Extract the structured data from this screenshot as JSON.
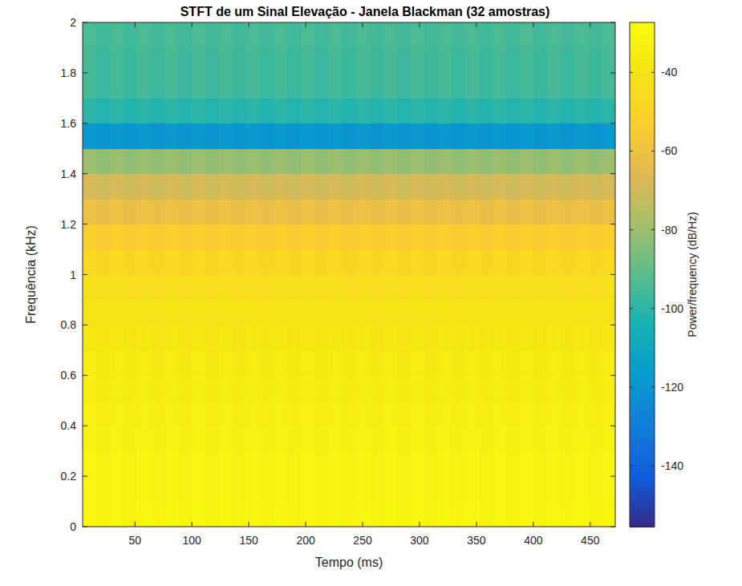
{
  "chart_data": {
    "type": "heatmap",
    "title": "STFT de um Sinal Elevação - Janela Blackman (32 amostras)",
    "x_label": "Tempo (ms)",
    "y_label": "Frequência (kHz)",
    "colorbar_label": "Power/frequency (dB/Hz)",
    "xlim": [
      4,
      472
    ],
    "ylim": [
      0,
      2
    ],
    "xticks": [
      50,
      100,
      150,
      200,
      250,
      300,
      350,
      400,
      450
    ],
    "yticks": [
      0,
      0.2,
      0.4,
      0.6,
      0.8,
      1,
      1.2,
      1.4,
      1.6,
      1.8,
      2
    ],
    "clim": [
      -155.5,
      -27.3
    ],
    "cticks": [
      -140,
      -120,
      -100,
      -80,
      -60,
      -40
    ],
    "grid": false,
    "x": [
      10,
      22,
      34,
      46,
      58,
      70,
      82,
      94,
      106,
      118,
      130,
      142,
      154,
      166,
      178,
      190,
      202,
      214,
      226,
      238,
      250,
      262,
      274,
      286,
      298,
      310,
      322,
      334,
      346,
      358,
      370,
      382,
      394,
      406,
      418,
      430,
      442,
      454,
      466
    ],
    "y": [
      0.05,
      0.15,
      0.25,
      0.35,
      0.45,
      0.55,
      0.65,
      0.75,
      0.85,
      0.95,
      1.05,
      1.15,
      1.25,
      1.35,
      1.45,
      1.55,
      1.65,
      1.75,
      1.85,
      1.95
    ],
    "cells": [
      [
        -30,
        -32,
        -30,
        -32,
        -30,
        -32,
        -30,
        -32,
        -30,
        -32,
        -30,
        -32,
        -30,
        -32,
        -30,
        -32,
        -30,
        -32,
        -30,
        -32,
        -30,
        -32,
        -30,
        -32,
        -30,
        -32,
        -30,
        -32,
        -30,
        -32,
        -30,
        -32,
        -30,
        -32,
        -30,
        -32,
        -30,
        -32,
        -30
      ],
      [
        -31,
        -33,
        -31,
        -33,
        -31,
        -33,
        -31,
        -33,
        -31,
        -33,
        -31,
        -33,
        -31,
        -33,
        -31,
        -33,
        -31,
        -33,
        -31,
        -33,
        -31,
        -33,
        -31,
        -33,
        -31,
        -33,
        -31,
        -33,
        -31,
        -33,
        -31,
        -33,
        -31,
        -33,
        -31,
        -33,
        -31,
        -33,
        -31
      ],
      [
        -31,
        -33,
        -31,
        -33,
        -31,
        -33,
        -31,
        -33,
        -31,
        -33,
        -31,
        -33,
        -31,
        -33,
        -31,
        -33,
        -31,
        -33,
        -31,
        -33,
        -31,
        -33,
        -31,
        -33,
        -31,
        -33,
        -31,
        -33,
        -31,
        -33,
        -31,
        -33,
        -31,
        -33,
        -31,
        -33,
        -31,
        -33,
        -31
      ],
      [
        -32,
        -34,
        -32,
        -34,
        -32,
        -34,
        -32,
        -34,
        -32,
        -34,
        -32,
        -34,
        -32,
        -34,
        -32,
        -34,
        -32,
        -34,
        -32,
        -34,
        -32,
        -34,
        -32,
        -34,
        -32,
        -34,
        -32,
        -34,
        -32,
        -34,
        -32,
        -34,
        -32,
        -34,
        -32,
        -34,
        -32,
        -34,
        -32
      ],
      [
        -33,
        -35,
        -33,
        -35,
        -33,
        -35,
        -33,
        -35,
        -33,
        -35,
        -33,
        -35,
        -33,
        -35,
        -33,
        -35,
        -33,
        -35,
        -33,
        -35,
        -33,
        -35,
        -33,
        -35,
        -33,
        -35,
        -33,
        -35,
        -33,
        -35,
        -33,
        -35,
        -33,
        -35,
        -33,
        -35,
        -33,
        -35,
        -33
      ],
      [
        -34,
        -36,
        -34,
        -36,
        -34,
        -36,
        -34,
        -36,
        -34,
        -36,
        -34,
        -36,
        -34,
        -36,
        -34,
        -36,
        -34,
        -36,
        -34,
        -36,
        -34,
        -36,
        -34,
        -36,
        -34,
        -36,
        -34,
        -36,
        -34,
        -36,
        -34,
        -36,
        -34,
        -36,
        -34,
        -36,
        -34,
        -36,
        -34
      ],
      [
        -35,
        -37,
        -35,
        -37,
        -35,
        -37,
        -35,
        -37,
        -35,
        -37,
        -35,
        -37,
        -35,
        -37,
        -35,
        -37,
        -35,
        -37,
        -35,
        -37,
        -35,
        -37,
        -35,
        -37,
        -35,
        -37,
        -35,
        -37,
        -35,
        -37,
        -35,
        -37,
        -35,
        -37,
        -35,
        -37,
        -35,
        -37,
        -35
      ],
      [
        -37,
        -39,
        -37,
        -39,
        -37,
        -39,
        -37,
        -39,
        -37,
        -39,
        -37,
        -39,
        -37,
        -39,
        -37,
        -39,
        -37,
        -39,
        -37,
        -39,
        -37,
        -39,
        -37,
        -39,
        -37,
        -39,
        -37,
        -39,
        -37,
        -39,
        -37,
        -39,
        -37,
        -39,
        -37,
        -39,
        -37,
        -39,
        -37
      ],
      [
        -39,
        -41,
        -39,
        -41,
        -39,
        -41,
        -39,
        -41,
        -39,
        -41,
        -39,
        -41,
        -39,
        -41,
        -39,
        -41,
        -39,
        -41,
        -39,
        -41,
        -39,
        -41,
        -39,
        -41,
        -39,
        -41,
        -39,
        -41,
        -39,
        -41,
        -39,
        -41,
        -39,
        -41,
        -39,
        -41,
        -39,
        -41,
        -39
      ],
      [
        -42,
        -44,
        -42,
        -44,
        -42,
        -44,
        -42,
        -44,
        -42,
        -44,
        -42,
        -44,
        -42,
        -44,
        -42,
        -44,
        -42,
        -44,
        -42,
        -44,
        -42,
        -44,
        -42,
        -44,
        -42,
        -44,
        -42,
        -44,
        -42,
        -44,
        -42,
        -44,
        -42,
        -44,
        -42,
        -44,
        -42,
        -44,
        -42
      ],
      [
        -46,
        -48,
        -46,
        -48,
        -46,
        -48,
        -46,
        -48,
        -46,
        -48,
        -46,
        -48,
        -46,
        -48,
        -46,
        -48,
        -46,
        -48,
        -46,
        -48,
        -46,
        -48,
        -46,
        -48,
        -46,
        -48,
        -46,
        -48,
        -46,
        -48,
        -46,
        -48,
        -46,
        -48,
        -46,
        -48,
        -46,
        -48,
        -46
      ],
      [
        -52,
        -54,
        -52,
        -54,
        -52,
        -54,
        -52,
        -54,
        -52,
        -54,
        -52,
        -54,
        -52,
        -54,
        -52,
        -54,
        -52,
        -54,
        -52,
        -54,
        -52,
        -54,
        -52,
        -54,
        -52,
        -54,
        -52,
        -54,
        -52,
        -54,
        -52,
        -54,
        -52,
        -54,
        -52,
        -54,
        -52,
        -54,
        -52
      ],
      [
        -60,
        -62,
        -60,
        -62,
        -60,
        -62,
        -60,
        -62,
        -60,
        -62,
        -60,
        -62,
        -60,
        -62,
        -60,
        -62,
        -60,
        -62,
        -60,
        -62,
        -60,
        -62,
        -60,
        -62,
        -60,
        -62,
        -60,
        -62,
        -60,
        -62,
        -60,
        -62,
        -60,
        -62,
        -60,
        -62,
        -60,
        -62,
        -60
      ],
      [
        -68,
        -70,
        -68,
        -70,
        -68,
        -70,
        -68,
        -70,
        -68,
        -70,
        -68,
        -70,
        -68,
        -70,
        -68,
        -70,
        -68,
        -70,
        -68,
        -70,
        -68,
        -70,
        -68,
        -70,
        -68,
        -70,
        -68,
        -70,
        -68,
        -70,
        -68,
        -70,
        -68,
        -70,
        -68,
        -70,
        -68,
        -70,
        -68
      ],
      [
        -80,
        -82,
        -80,
        -82,
        -80,
        -82,
        -80,
        -82,
        -80,
        -82,
        -80,
        -82,
        -80,
        -82,
        -80,
        -82,
        -80,
        -82,
        -80,
        -82,
        -80,
        -82,
        -80,
        -82,
        -80,
        -82,
        -80,
        -82,
        -80,
        -82,
        -80,
        -82,
        -80,
        -82,
        -80,
        -82,
        -80,
        -82,
        -80
      ],
      [
        -118,
        -120,
        -118,
        -120,
        -118,
        -120,
        -118,
        -120,
        -118,
        -120,
        -118,
        -120,
        -118,
        -120,
        -118,
        -120,
        -118,
        -120,
        -118,
        -120,
        -118,
        -120,
        -118,
        -120,
        -118,
        -120,
        -118,
        -120,
        -118,
        -120,
        -118,
        -120,
        -118,
        -120,
        -118,
        -120,
        -118,
        -120,
        -118
      ],
      [
        -100,
        -102,
        -100,
        -102,
        -100,
        -102,
        -100,
        -102,
        -100,
        -102,
        -100,
        -102,
        -100,
        -102,
        -100,
        -102,
        -100,
        -102,
        -100,
        -102,
        -100,
        -102,
        -100,
        -102,
        -100,
        -102,
        -100,
        -102,
        -100,
        -102,
        -100,
        -102,
        -100,
        -102,
        -100,
        -102,
        -100,
        -102,
        -100
      ],
      [
        -95,
        -97,
        -95,
        -97,
        -95,
        -97,
        -95,
        -97,
        -95,
        -97,
        -95,
        -97,
        -95,
        -97,
        -95,
        -97,
        -95,
        -97,
        -95,
        -97,
        -95,
        -97,
        -95,
        -97,
        -95,
        -97,
        -95,
        -97,
        -95,
        -97,
        -95,
        -97,
        -95,
        -97,
        -95,
        -97,
        -95,
        -97,
        -95
      ],
      [
        -95,
        -97,
        -95,
        -97,
        -95,
        -97,
        -95,
        -97,
        -95,
        -97,
        -95,
        -97,
        -95,
        -97,
        -95,
        -97,
        -95,
        -97,
        -95,
        -97,
        -95,
        -97,
        -95,
        -97,
        -95,
        -97,
        -95,
        -97,
        -95,
        -97,
        -95,
        -97,
        -95,
        -97,
        -95,
        -97,
        -95,
        -97,
        -95
      ],
      [
        -94,
        -96,
        -94,
        -96,
        -94,
        -96,
        -94,
        -96,
        -94,
        -96,
        -94,
        -96,
        -94,
        -96,
        -94,
        -96,
        -94,
        -96,
        -94,
        -96,
        -94,
        -96,
        -94,
        -96,
        -94,
        -96,
        -94,
        -96,
        -94,
        -96,
        -94,
        -96,
        -94,
        -96,
        -94,
        -96,
        -94,
        -96,
        -94
      ]
    ]
  }
}
